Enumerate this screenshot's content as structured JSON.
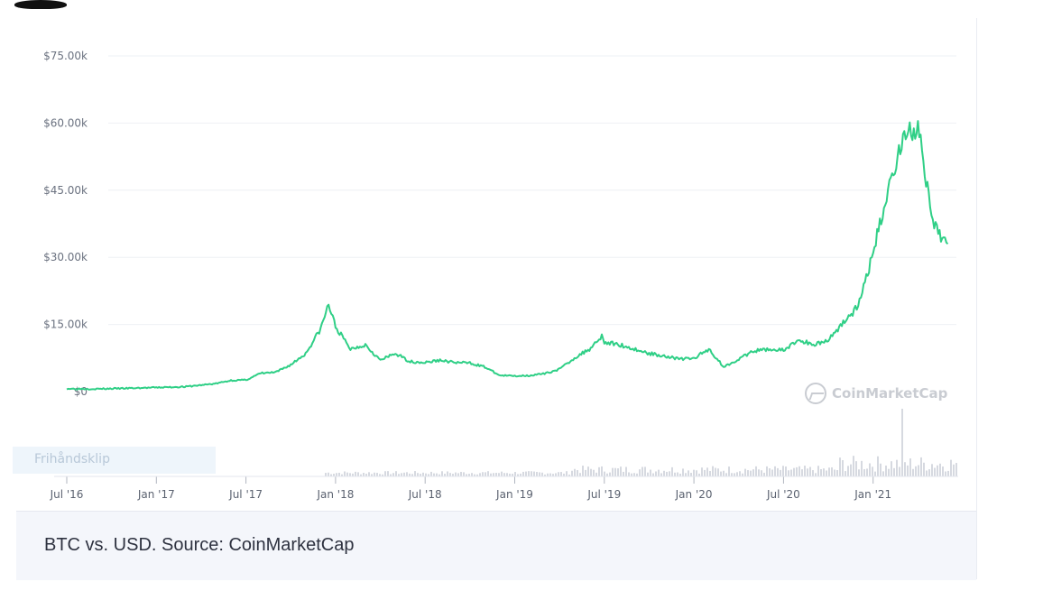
{
  "caption": "BTC vs. USD. Source: CoinMarketCap",
  "overlay_label": "Frihåndsklip",
  "watermark": {
    "text": "CoinMarketCap",
    "icon": "coinmarketcap-logo-icon"
  },
  "colors": {
    "line": "#2fcf86",
    "grid": "#eef0f4",
    "volume": "#c4c9d3"
  },
  "chart_data": {
    "type": "line",
    "title": "",
    "xlabel": "",
    "ylabel": "",
    "ylim": [
      0,
      75000
    ],
    "y_ticks": [
      {
        "value": 0,
        "label": "$0"
      },
      {
        "value": 15000,
        "label": "$15.00k"
      },
      {
        "value": 30000,
        "label": "$30.00k"
      },
      {
        "value": 45000,
        "label": "$45.00k"
      },
      {
        "value": 60000,
        "label": "$60.00k"
      },
      {
        "value": 75000,
        "label": "$75.00k"
      }
    ],
    "x_ticks": [
      "Jul '16",
      "Jan '17",
      "Jul '17",
      "Jan '18",
      "Jul '18",
      "Jan '19",
      "Jul '19",
      "Jan '20",
      "Jul '20",
      "Jan '21"
    ],
    "x_tick_dates": [
      "2016-07",
      "2017-01",
      "2017-07",
      "2018-01",
      "2018-07",
      "2019-01",
      "2019-07",
      "2020-01",
      "2020-07",
      "2021-01"
    ],
    "grid": true,
    "series": [
      {
        "x": [
          "2016-07",
          "2016-09",
          "2016-11",
          "2017-01",
          "2017-03",
          "2017-05",
          "2017-06",
          "2017-07",
          "2017-08",
          "2017-09",
          "2017-10",
          "2017-11",
          "2017-12",
          "2017-12-17",
          "2018-01",
          "2018-02",
          "2018-03",
          "2018-04",
          "2018-05",
          "2018-06",
          "2018-07",
          "2018-08",
          "2018-09",
          "2018-10",
          "2018-11",
          "2018-12",
          "2019-01",
          "2019-02",
          "2019-03",
          "2019-04",
          "2019-05",
          "2019-06",
          "2019-06-26",
          "2019-07",
          "2019-08",
          "2019-09",
          "2019-10",
          "2019-11",
          "2019-12",
          "2020-01",
          "2020-02",
          "2020-03",
          "2020-04",
          "2020-05",
          "2020-06",
          "2020-07",
          "2020-08",
          "2020-09",
          "2020-10",
          "2020-11",
          "2020-12",
          "2021-01",
          "2021-02",
          "2021-03",
          "2021-04",
          "2021-05",
          "2021-06"
        ],
        "y": [
          650,
          600,
          730,
          900,
          1100,
          1800,
          2500,
          2600,
          4100,
          4300,
          6000,
          8500,
          14000,
          19500,
          14500,
          9500,
          10500,
          7000,
          8500,
          6700,
          6500,
          7000,
          6500,
          6400,
          5500,
          3600,
          3500,
          3600,
          4000,
          5000,
          7500,
          9500,
          12500,
          11000,
          10500,
          9500,
          8500,
          8000,
          7300,
          7400,
          9500,
          5500,
          7300,
          9000,
          9500,
          9200,
          11500,
          10500,
          11500,
          15500,
          19000,
          31000,
          45000,
          57000,
          59000,
          37000,
          33000
        ]
      }
    ],
    "volume_note": "volume bars shown along bottom"
  }
}
